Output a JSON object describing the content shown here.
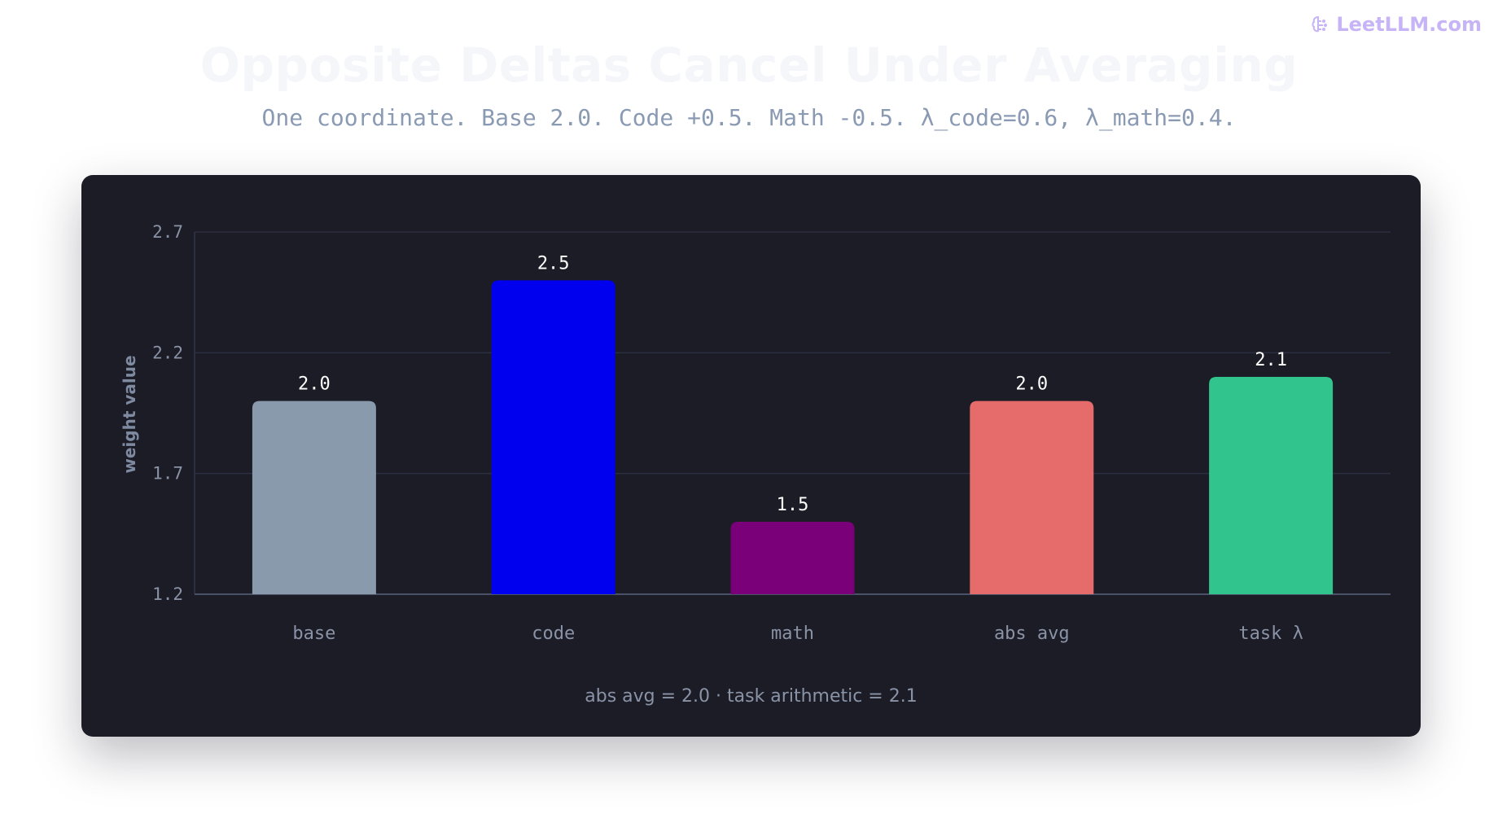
{
  "brand": {
    "name": "LeetLLM.com",
    "icon": "brain-icon"
  },
  "title": "Opposite Deltas Cancel Under Averaging",
  "subtitle": "One coordinate. Base 2.0. Code +0.5. Math -0.5. λ_code=0.6, λ_math=0.4.",
  "footnote": "abs avg = 2.0 · task arithmetic = 2.1",
  "chart_data": {
    "type": "bar",
    "categories": [
      "base",
      "code",
      "math",
      "abs avg",
      "task λ"
    ],
    "values": [
      2.0,
      2.5,
      1.5,
      2.0,
      2.1
    ],
    "value_labels": [
      "2.0",
      "2.5",
      "1.5",
      "2.0",
      "2.1"
    ],
    "colors": [
      "#8a9aad",
      "#0000ee",
      "#7a007a",
      "#e66b6b",
      "#32c48d"
    ],
    "ylabel": "weight value",
    "ylim": [
      1.2,
      2.7
    ],
    "yticks": [
      1.2,
      1.7,
      2.2,
      2.7
    ],
    "ytick_labels": [
      "1.2",
      "1.7",
      "2.2",
      "2.7"
    ],
    "grid": true,
    "legend": "none"
  },
  "colors": {
    "card_background": "#1c1c27",
    "gridline": "#2c2f41",
    "axis": "#4a5268",
    "tick_text": "#8a93a6",
    "value_text": "#ffffff"
  }
}
